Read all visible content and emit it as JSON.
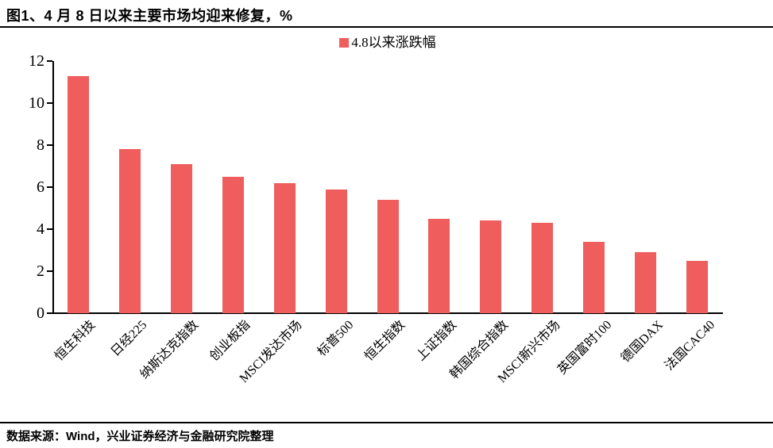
{
  "title": "图1、4 月 8 日以来主要市场均迎来修复，%",
  "legend": {
    "label": "4.8以来涨跌幅"
  },
  "footer": {
    "source": "数据来源：Wind，兴业证券经济与金融研究院整理"
  },
  "colors": {
    "bar": "#EF5D5D",
    "axis": "#000000",
    "text": "#000000"
  },
  "chart_data": {
    "type": "bar",
    "title": "图1、4 月 8 日以来主要市场均迎来修复，%",
    "legend": [
      "4.8以来涨跌幅"
    ],
    "legend_position": "top-center",
    "categories": [
      "恒生科技",
      "日经225",
      "纳斯达克指数",
      "创业板指",
      "MSCI发达市场",
      "标普500",
      "恒生指数",
      "上证指数",
      "韩国综合指数",
      "MSCI新兴市场",
      "英国富时100",
      "德国DAX",
      "法国CAC40"
    ],
    "values": [
      11.3,
      7.8,
      7.1,
      6.5,
      6.2,
      5.9,
      5.4,
      4.5,
      4.4,
      4.3,
      3.4,
      2.9,
      2.5
    ],
    "unit": "%",
    "xlabel": "",
    "ylabel": "",
    "ylim": [
      0,
      12
    ],
    "yticks": [
      0,
      2,
      4,
      6,
      8,
      10,
      12
    ],
    "grid": false,
    "bar_color": "#EF5D5D"
  }
}
